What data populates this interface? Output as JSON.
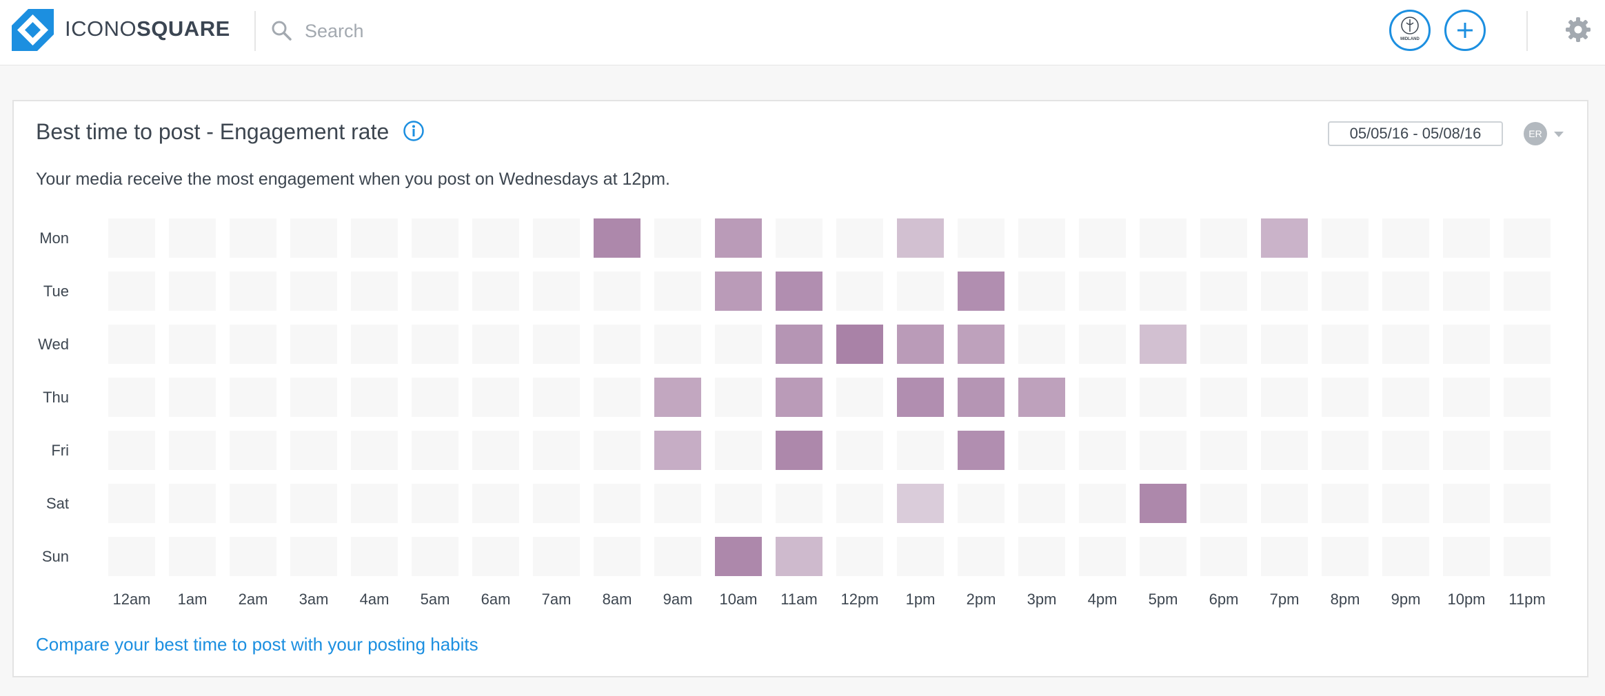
{
  "header": {
    "logo": {
      "text_light": "ICONO",
      "text_bold": "SQUARE",
      "icon": "iconosquare-logo-icon",
      "brand_color": "#1c8fe0"
    },
    "search": {
      "placeholder": "Search",
      "value": "",
      "icon": "search-icon"
    },
    "account": {
      "icon": "account-avatar",
      "badge_text": "MIDLAND"
    },
    "add_icon": "plus-icon",
    "settings_icon": "gear-icon"
  },
  "card": {
    "title": "Best time to post - Engagement rate",
    "info_icon": "info-icon",
    "date_range": "05/05/16 - 05/08/16",
    "metric": {
      "badge": "ER",
      "icon": "chevron-down-icon"
    },
    "summary": "Your media receive the most engagement when you post on Wednesdays at 12pm.",
    "compare_link": "Compare your best time to post with your posting habits"
  },
  "chart_data": {
    "type": "heatmap",
    "rows": [
      "Mon",
      "Tue",
      "Wed",
      "Thu",
      "Fri",
      "Sat",
      "Sun"
    ],
    "columns": [
      "12am",
      "1am",
      "2am",
      "3am",
      "4am",
      "5am",
      "6am",
      "7am",
      "8am",
      "9am",
      "10am",
      "11am",
      "12pm",
      "1pm",
      "2pm",
      "3pm",
      "4pm",
      "5pm",
      "6pm",
      "7pm",
      "8pm",
      "9pm",
      "10pm",
      "11pm"
    ],
    "values": [
      [
        0,
        0,
        0,
        0,
        0,
        0,
        0,
        0,
        0.9,
        0,
        0.75,
        0,
        0,
        0.45,
        0,
        0,
        0,
        0,
        0,
        0.55,
        0,
        0,
        0,
        0
      ],
      [
        0,
        0,
        0,
        0,
        0,
        0,
        0,
        0,
        0,
        0,
        0.75,
        0.85,
        0,
        0,
        0.85,
        0,
        0,
        0,
        0,
        0,
        0,
        0,
        0,
        0
      ],
      [
        0,
        0,
        0,
        0,
        0,
        0,
        0,
        0,
        0,
        0,
        0,
        0.8,
        0.95,
        0.75,
        0.7,
        0,
        0,
        0.45,
        0,
        0,
        0,
        0,
        0,
        0
      ],
      [
        0,
        0,
        0,
        0,
        0,
        0,
        0,
        0,
        0,
        0.65,
        0,
        0.75,
        0,
        0.85,
        0.8,
        0.7,
        0,
        0,
        0,
        0,
        0,
        0,
        0,
        0
      ],
      [
        0,
        0,
        0,
        0,
        0,
        0,
        0,
        0,
        0,
        0.6,
        0,
        0.9,
        0,
        0,
        0.85,
        0,
        0,
        0,
        0,
        0,
        0,
        0,
        0,
        0
      ],
      [
        0,
        0,
        0,
        0,
        0,
        0,
        0,
        0,
        0,
        0,
        0,
        0,
        0,
        0.35,
        0,
        0,
        0,
        0.9,
        0,
        0,
        0,
        0,
        0,
        0
      ],
      [
        0,
        0,
        0,
        0,
        0,
        0,
        0,
        0,
        0,
        0,
        0.9,
        0.5,
        0,
        0,
        0,
        0,
        0,
        0,
        0,
        0,
        0,
        0,
        0,
        0
      ]
    ],
    "empty_color": "#f7f7f7",
    "scale_color": "#a57ca3"
  }
}
